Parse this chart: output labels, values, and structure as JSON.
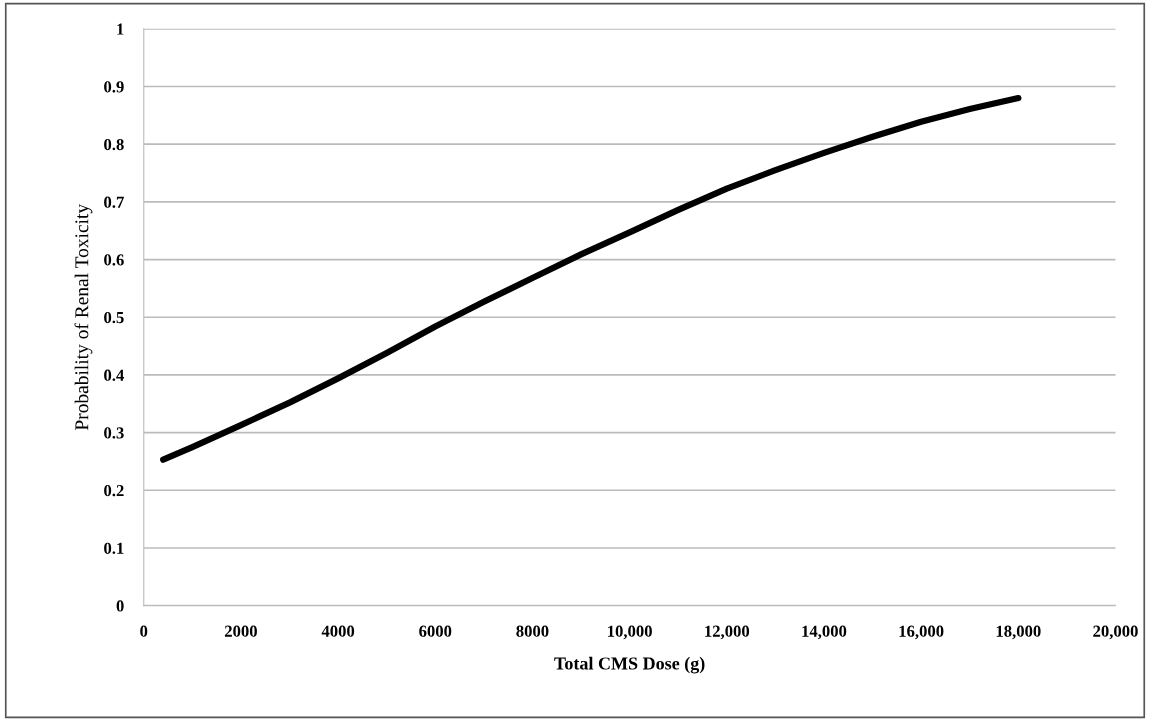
{
  "chart_data": {
    "type": "line",
    "xlabel": "Total CMS Dose (g)",
    "ylabel": "Probability of Renal Toxicity",
    "x": [
      400,
      1000,
      2000,
      3000,
      4000,
      5000,
      6000,
      7000,
      8000,
      9000,
      10000,
      11000,
      12000,
      13000,
      14000,
      15000,
      16000,
      17000,
      18000
    ],
    "series": [
      {
        "color": "#000000",
        "values": [
          0.253,
          0.275,
          0.313,
          0.352,
          0.394,
          0.438,
          0.484,
          0.527,
          0.568,
          0.609,
          0.647,
          0.686,
          0.723,
          0.755,
          0.785,
          0.813,
          0.839,
          0.861,
          0.88
        ]
      }
    ],
    "xlim": [
      0,
      20000
    ],
    "ylim": [
      0,
      1
    ],
    "xticks": [
      0,
      2000,
      4000,
      6000,
      8000,
      {
        "value": 10000,
        "label": "10,000"
      },
      {
        "value": 12000,
        "label": "12,000"
      },
      {
        "value": 14000,
        "label": "14,000"
      },
      {
        "value": 16000,
        "label": "16,000"
      },
      {
        "value": 18000,
        "label": "18,000"
      },
      {
        "value": 20000,
        "label": "20,000"
      }
    ],
    "yticks": [
      0,
      0.1,
      0.2,
      0.3,
      0.4,
      0.5,
      0.6,
      0.7,
      0.8,
      0.9,
      1
    ],
    "grid": "y",
    "legend": false,
    "marker": "none",
    "line_style": "solid"
  }
}
